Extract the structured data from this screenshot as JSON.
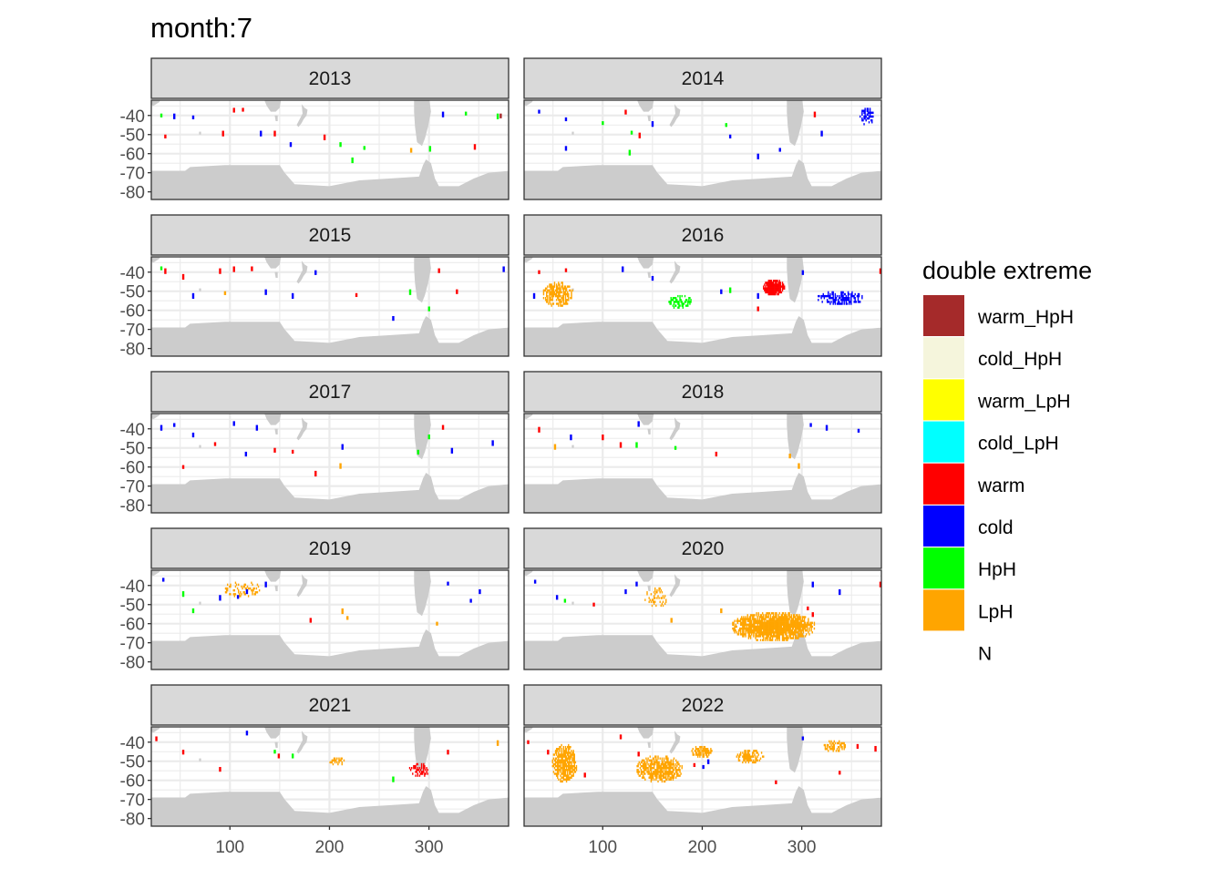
{
  "chart_data": {
    "type": "heatmap",
    "title": "month:7",
    "xlabel": "",
    "ylabel": "",
    "xlim": [
      21,
      380
    ],
    "ylim": [
      -84,
      -32
    ],
    "x_ticks": [
      100,
      200,
      300
    ],
    "x_tick_labels": [
      "100",
      "200",
      "300"
    ],
    "y_ticks": [
      -40,
      -50,
      -60,
      -70,
      -80
    ],
    "y_tick_labels": [
      "-40",
      "-50",
      "-60",
      "-70",
      "-80"
    ],
    "grid": true,
    "legend": {
      "title": "double extreme",
      "placement": "right",
      "entries": [
        {
          "label": "warm_HpH",
          "color": "#a52a2a"
        },
        {
          "label": "cold_HpH",
          "color": "#f5f5dc"
        },
        {
          "label": "warm_LpH",
          "color": "#ffff00"
        },
        {
          "label": "cold_LpH",
          "color": "#00ffff"
        },
        {
          "label": "warm",
          "color": "#ff0000"
        },
        {
          "label": "cold",
          "color": "#0000ff"
        },
        {
          "label": "HpH",
          "color": "#00ff00"
        },
        {
          "label": "LpH",
          "color": "#ffa500"
        },
        {
          "label": "N",
          "color": null
        }
      ]
    },
    "land_color": "#cccccc",
    "facets": [
      {
        "label": "2013",
        "points": [
          [
            30,
            -40,
            "HpH"
          ],
          [
            43,
            -40,
            "cold"
          ],
          [
            62,
            -41,
            "cold"
          ],
          [
            34,
            -51,
            "warm"
          ],
          [
            92,
            -49,
            "warm"
          ],
          [
            103,
            -37,
            "warm"
          ],
          [
            112,
            -37,
            "warm"
          ],
          [
            130,
            -49,
            "cold"
          ],
          [
            144,
            -49,
            "warm"
          ],
          [
            160,
            -55,
            "cold"
          ],
          [
            194,
            -51,
            "warm"
          ],
          [
            210,
            -55,
            "HpH"
          ],
          [
            222,
            -63,
            "HpH"
          ],
          [
            234,
            -57,
            "HpH"
          ],
          [
            281,
            -58,
            "LpH"
          ],
          [
            300,
            -57,
            "HpH"
          ],
          [
            313,
            -39,
            "cold"
          ],
          [
            336,
            -39,
            "HpH"
          ],
          [
            345,
            -56,
            "warm"
          ],
          [
            371,
            -40,
            "warm_HpH"
          ],
          [
            368,
            -40,
            "HpH"
          ]
        ],
        "clusters": []
      },
      {
        "label": "2014",
        "points": [
          [
            35,
            -38,
            "cold"
          ],
          [
            62,
            -42,
            "cold"
          ],
          [
            99,
            -44,
            "HpH"
          ],
          [
            122,
            -38,
            "warm"
          ],
          [
            128,
            -49,
            "HpH"
          ],
          [
            136,
            -50,
            "warm"
          ],
          [
            149,
            -44,
            "cold"
          ],
          [
            126,
            -59,
            "HpH"
          ],
          [
            62,
            -57,
            "cold"
          ],
          [
            223,
            -45,
            "HpH"
          ],
          [
            227,
            -51,
            "cold"
          ],
          [
            255,
            -61,
            "cold"
          ],
          [
            277,
            -58,
            "cold"
          ],
          [
            312,
            -39,
            "warm"
          ],
          [
            319,
            -49,
            "cold"
          ]
        ],
        "clusters": [
          {
            "category": "cold",
            "lon": [
              358,
              372
            ],
            "lat": [
              -37,
              -45
            ],
            "density": 0.5
          }
        ]
      },
      {
        "label": "2015",
        "points": [
          [
            30,
            -38,
            "HpH"
          ],
          [
            34,
            -39,
            "warm"
          ],
          [
            52,
            -42,
            "warm"
          ],
          [
            62,
            -52,
            "cold"
          ],
          [
            89,
            -39,
            "warm"
          ],
          [
            103,
            -38,
            "warm"
          ],
          [
            121,
            -38,
            "warm"
          ],
          [
            94,
            -51,
            "LpH"
          ],
          [
            135,
            -50,
            "cold"
          ],
          [
            162,
            -52,
            "cold"
          ],
          [
            185,
            -40,
            "cold"
          ],
          [
            226,
            -52,
            "warm"
          ],
          [
            263,
            -64,
            "cold"
          ],
          [
            280,
            -50,
            "HpH"
          ],
          [
            299,
            -59,
            "HpH"
          ],
          [
            309,
            -39,
            "warm"
          ],
          [
            327,
            -50,
            "warm"
          ],
          [
            374,
            -38,
            "cold"
          ]
        ],
        "clusters": []
      },
      {
        "label": "2016",
        "points": [
          [
            35,
            -40,
            "warm"
          ],
          [
            62,
            -39,
            "warm"
          ],
          [
            119,
            -38,
            "cold"
          ],
          [
            149,
            -43,
            "cold"
          ],
          [
            218,
            -50,
            "cold"
          ],
          [
            255,
            -52,
            "cold"
          ],
          [
            300,
            -40,
            "cold"
          ],
          [
            227,
            -49,
            "HpH"
          ],
          [
            378,
            -39,
            "warm"
          ],
          [
            255,
            -59,
            "warm"
          ],
          [
            30,
            -52,
            "cold"
          ]
        ],
        "clusters": [
          {
            "category": "LpH",
            "lon": [
              40,
              69
            ],
            "lat": [
              -46,
              -58
            ],
            "density": 0.7
          },
          {
            "category": "warm",
            "lon": [
              261,
              282
            ],
            "lat": [
              -45,
              -52
            ],
            "density": 0.95
          },
          {
            "category": "cold",
            "lon": [
              316,
              362
            ],
            "lat": [
              -51,
              -57
            ],
            "density": 0.55
          },
          {
            "category": "HpH",
            "lon": [
              166,
              189
            ],
            "lat": [
              -53,
              -59
            ],
            "density": 0.5
          }
        ]
      },
      {
        "label": "2017",
        "points": [
          [
            30,
            -39,
            "cold"
          ],
          [
            43,
            -38,
            "cold"
          ],
          [
            62,
            -43,
            "cold"
          ],
          [
            84,
            -48,
            "warm"
          ],
          [
            103,
            -37,
            "cold"
          ],
          [
            115,
            -53,
            "cold"
          ],
          [
            126,
            -39,
            "cold"
          ],
          [
            144,
            -51,
            "warm"
          ],
          [
            162,
            -52,
            "warm"
          ],
          [
            185,
            -63,
            "warm"
          ],
          [
            212,
            -49,
            "cold"
          ],
          [
            210,
            -59,
            "LpH"
          ],
          [
            288,
            -52,
            "HpH"
          ],
          [
            299,
            -44,
            "HpH"
          ],
          [
            313,
            -39,
            "warm"
          ],
          [
            322,
            -51,
            "cold"
          ],
          [
            363,
            -47,
            "cold"
          ],
          [
            52,
            -60,
            "warm"
          ]
        ],
        "clusters": []
      },
      {
        "label": "2018",
        "points": [
          [
            35,
            -40,
            "warm"
          ],
          [
            51,
            -49,
            "LpH"
          ],
          [
            67,
            -44,
            "cold"
          ],
          [
            99,
            -44,
            "warm"
          ],
          [
            117,
            -48,
            "warm"
          ],
          [
            133,
            -48,
            "HpH"
          ],
          [
            135,
            -37,
            "cold"
          ],
          [
            172,
            -50,
            "HpH"
          ],
          [
            213,
            -53,
            "warm"
          ],
          [
            287,
            -54,
            "LpH"
          ],
          [
            296,
            -59,
            "LpH"
          ],
          [
            308,
            -38,
            "cold"
          ],
          [
            324,
            -39,
            "cold"
          ],
          [
            356,
            -41,
            "cold"
          ]
        ],
        "clusters": []
      },
      {
        "label": "2019",
        "points": [
          [
            32,
            -37,
            "cold"
          ],
          [
            52,
            -44,
            "HpH"
          ],
          [
            62,
            -53,
            "HpH"
          ],
          [
            89,
            -46,
            "cold"
          ],
          [
            107,
            -46,
            "cold"
          ],
          [
            116,
            -43,
            "cold"
          ],
          [
            135,
            -39,
            "cold"
          ],
          [
            180,
            -58,
            "warm"
          ],
          [
            212,
            -53,
            "LpH"
          ],
          [
            217,
            -57,
            "LpH"
          ],
          [
            307,
            -60,
            "LpH"
          ],
          [
            318,
            -39,
            "cold"
          ],
          [
            341,
            -48,
            "cold"
          ],
          [
            350,
            -43,
            "cold"
          ]
        ],
        "clusters": [
          {
            "category": "LpH",
            "lon": [
              94,
              130
            ],
            "lat": [
              -39,
              -46
            ],
            "density": 0.35
          }
        ]
      },
      {
        "label": "2020",
        "points": [
          [
            31,
            -38,
            "cold"
          ],
          [
            53,
            -46,
            "cold"
          ],
          [
            61,
            -48,
            "HpH"
          ],
          [
            90,
            -50,
            "warm"
          ],
          [
            122,
            -43,
            "cold"
          ],
          [
            133,
            -39,
            "cold"
          ],
          [
            168,
            -58,
            "LpH"
          ],
          [
            218,
            -53,
            "LpH"
          ],
          [
            337,
            -43,
            "cold"
          ],
          [
            310,
            -39,
            "cold"
          ],
          [
            378,
            -39,
            "warm"
          ],
          [
            305,
            -52,
            "warm"
          ],
          [
            310,
            -55,
            "warm"
          ]
        ],
        "clusters": [
          {
            "category": "LpH",
            "lon": [
              230,
              312
            ],
            "lat": [
              -55,
              -69
            ],
            "density": 0.85
          },
          {
            "category": "LpH",
            "lon": [
              142,
              163
            ],
            "lat": [
              -42,
              -52
            ],
            "density": 0.3
          }
        ]
      },
      {
        "label": "2021",
        "points": [
          [
            25,
            -38,
            "warm"
          ],
          [
            52,
            -45,
            "warm"
          ],
          [
            89,
            -54,
            "warm"
          ],
          [
            116,
            -35,
            "cold"
          ],
          [
            144,
            -45,
            "HpH"
          ],
          [
            162,
            -47,
            "HpH"
          ],
          [
            148,
            -47,
            "warm"
          ],
          [
            263,
            -59,
            "HpH"
          ],
          [
            318,
            -45,
            "warm"
          ],
          [
            368,
            -40,
            "LpH"
          ]
        ],
        "clusters": [
          {
            "category": "LpH",
            "lon": [
              199,
              215
            ],
            "lat": [
              -49,
              -52
            ],
            "density": 0.6
          },
          {
            "category": "warm",
            "lon": [
              280,
              300
            ],
            "lat": [
              -52,
              -58
            ],
            "density": 0.5
          }
        ]
      },
      {
        "label": "2022",
        "points": [
          [
            24,
            -40,
            "warm"
          ],
          [
            44,
            -45,
            "warm"
          ],
          [
            81,
            -57,
            "warm"
          ],
          [
            117,
            -37,
            "warm"
          ],
          [
            135,
            -46,
            "warm"
          ],
          [
            191,
            -52,
            "warm"
          ],
          [
            273,
            -61,
            "warm"
          ],
          [
            300,
            -38,
            "cold"
          ],
          [
            355,
            -42,
            "warm"
          ],
          [
            373,
            -43,
            "warm"
          ],
          [
            337,
            -56,
            "warm"
          ],
          [
            205,
            -50,
            "cold"
          ],
          [
            200,
            -53,
            "cold"
          ]
        ],
        "clusters": [
          {
            "category": "LpH",
            "lon": [
              49,
              73
            ],
            "lat": [
              -42,
              -61
            ],
            "density": 0.75
          },
          {
            "category": "LpH",
            "lon": [
              134,
              179
            ],
            "lat": [
              -48,
              -61
            ],
            "density": 0.7
          },
          {
            "category": "LpH",
            "lon": [
              189,
              209
            ],
            "lat": [
              -43,
              -48
            ],
            "density": 0.7
          },
          {
            "category": "LpH",
            "lon": [
              234,
              261
            ],
            "lat": [
              -45,
              -51
            ],
            "density": 0.6
          },
          {
            "category": "LpH",
            "lon": [
              321,
              344
            ],
            "lat": [
              -40,
              -45
            ],
            "density": 0.4
          }
        ]
      }
    ]
  }
}
